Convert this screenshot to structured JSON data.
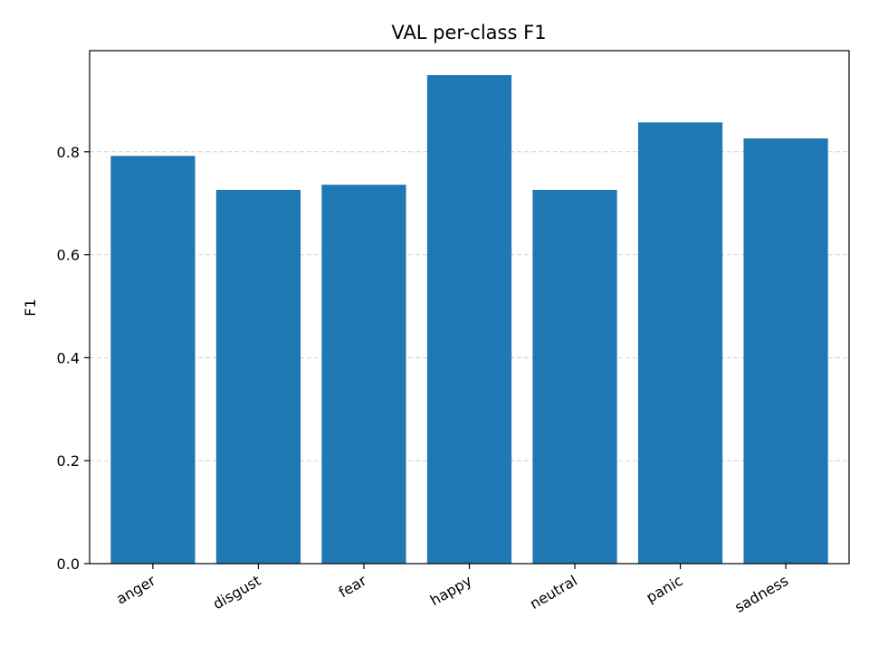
{
  "chart_data": {
    "type": "bar",
    "title": "VAL per-class F1",
    "xlabel": "",
    "ylabel": "F1",
    "categories": [
      "anger",
      "disgust",
      "fear",
      "happy",
      "neutral",
      "panic",
      "sadness"
    ],
    "values": [
      0.792,
      0.726,
      0.736,
      0.949,
      0.726,
      0.857,
      0.826
    ],
    "ylim": [
      0,
      0.9965
    ],
    "yticks": [
      0.0,
      0.2,
      0.4,
      0.6,
      0.8
    ],
    "ytick_labels": [
      "0.0",
      "0.2",
      "0.4",
      "0.6",
      "0.8"
    ],
    "grid": {
      "axis": "y",
      "style": "dashed"
    },
    "bar_color": "#1f77b4",
    "legend": "none"
  }
}
